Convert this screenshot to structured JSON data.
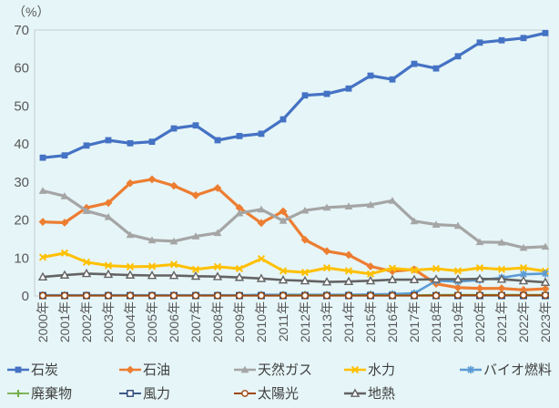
{
  "page": {
    "background": "#e6f5f7"
  },
  "chart_data": {
    "type": "line",
    "title": "",
    "unit_label": "（%）",
    "xlabel": "",
    "ylabel": "（%）",
    "ylim": [
      0,
      70
    ],
    "yticks": [
      0,
      10,
      20,
      30,
      40,
      50,
      60,
      70
    ],
    "grid": false,
    "legend_position": "bottom",
    "plot_background": "#e6f5f7",
    "axis_color": "#c6cdd0",
    "tick_label_color": "#595959",
    "legend_text_color": "#3f3f3f",
    "x_categories": [
      "2000年",
      "2001年",
      "2002年",
      "2003年",
      "2004年",
      "2005年",
      "2006年",
      "2007年",
      "2008年",
      "2009年",
      "2010年",
      "2011年",
      "2012年",
      "2013年",
      "2014年",
      "2015年",
      "2016年",
      "2017年",
      "2018年",
      "2019年",
      "2020年",
      "2021年",
      "2022年",
      "2023年"
    ],
    "series": [
      {
        "id": "coal",
        "name": "石炭",
        "color": "#4472C4",
        "marker": "square-filled",
        "line_width": 3.2,
        "values": [
          36.4,
          37.0,
          39.6,
          41.0,
          40.2,
          40.6,
          44.1,
          44.9,
          41.0,
          42.1,
          42.7,
          46.5,
          52.8,
          53.2,
          54.6,
          58.0,
          57.0,
          61.1,
          59.9,
          63.1,
          66.7,
          67.3,
          67.9,
          69.2
        ]
      },
      {
        "id": "oil",
        "name": "石油",
        "color": "#ED7D31",
        "marker": "diamond-filled",
        "line_width": 3.2,
        "values": [
          19.5,
          19.3,
          23.2,
          24.5,
          29.7,
          30.7,
          29.0,
          26.5,
          28.4,
          23.2,
          19.2,
          22.3,
          14.8,
          11.8,
          10.8,
          7.8,
          6.5,
          7.0,
          3.2,
          2.2,
          2.0,
          2.0,
          1.6,
          1.9
        ]
      },
      {
        "id": "natural-gas",
        "name": "天然ガス",
        "color": "#A5A5A5",
        "marker": "triangle-filled",
        "line_width": 3.2,
        "values": [
          27.7,
          26.3,
          22.4,
          20.8,
          16.1,
          14.7,
          14.4,
          15.7,
          16.6,
          21.8,
          22.8,
          19.8,
          22.5,
          23.3,
          23.6,
          24.0,
          25.1,
          19.7,
          18.8,
          18.5,
          14.2,
          14.1,
          12.7,
          13.0
        ]
      },
      {
        "id": "hydro",
        "name": "水力",
        "color": "#FFC000",
        "marker": "x-cross",
        "line_width": 3.0,
        "values": [
          10.2,
          11.3,
          8.9,
          8.0,
          7.7,
          7.8,
          8.3,
          7.0,
          7.7,
          7.2,
          9.8,
          6.6,
          6.2,
          7.4,
          6.6,
          5.8,
          7.3,
          6.8,
          7.2,
          6.6,
          7.4,
          7.0,
          7.4,
          6.5
        ]
      },
      {
        "id": "biofuel",
        "name": "バイオ燃料",
        "color": "#5B9BD5",
        "marker": "asterisk",
        "line_width": 2.6,
        "values": [
          0.2,
          0.2,
          0.2,
          0.2,
          0.2,
          0.2,
          0.2,
          0.2,
          0.2,
          0.2,
          0.3,
          0.3,
          0.3,
          0.3,
          0.3,
          0.4,
          0.5,
          0.7,
          4.0,
          3.8,
          4.2,
          4.8,
          5.7,
          5.9
        ]
      },
      {
        "id": "waste",
        "name": "廃棄物",
        "color": "#70AD47",
        "marker": "plus",
        "line_width": 1.8,
        "values": [
          0.1,
          0.1,
          0.1,
          0.1,
          0.1,
          0.1,
          0.1,
          0.1,
          0.1,
          0.1,
          0.1,
          0.2,
          0.2,
          0.2,
          0.2,
          0.2,
          0.2,
          0.2,
          0.3,
          0.3,
          0.3,
          0.3,
          0.3,
          0.3
        ]
      },
      {
        "id": "wind",
        "name": "風力",
        "color": "#264478",
        "marker": "square-open",
        "line_width": 1.8,
        "values": [
          0.1,
          0.1,
          0.1,
          0.1,
          0.1,
          0.1,
          0.1,
          0.1,
          0.1,
          0.1,
          0.1,
          0.1,
          0.1,
          0.1,
          0.1,
          0.1,
          0.1,
          0.1,
          0.1,
          0.1,
          0.1,
          0.1,
          0.1,
          0.1
        ]
      },
      {
        "id": "solar",
        "name": "太陽光",
        "color": "#9E480E",
        "marker": "circle-open",
        "line_width": 2.0,
        "values": [
          0.1,
          0.1,
          0.1,
          0.1,
          0.1,
          0.1,
          0.1,
          0.1,
          0.1,
          0.1,
          0.1,
          0.1,
          0.1,
          0.1,
          0.1,
          0.1,
          0.1,
          0.1,
          0.1,
          0.2,
          0.2,
          0.2,
          0.2,
          0.2
        ]
      },
      {
        "id": "geothermal",
        "name": "地熱",
        "color": "#636363",
        "marker": "triangle-open",
        "line_width": 2.6,
        "values": [
          5.0,
          5.5,
          5.9,
          5.7,
          5.5,
          5.4,
          5.4,
          5.2,
          5.1,
          4.9,
          4.6,
          4.2,
          4.0,
          3.7,
          3.8,
          4.0,
          4.3,
          4.3,
          4.4,
          4.4,
          4.5,
          4.4,
          4.0,
          3.6
        ]
      }
    ]
  }
}
